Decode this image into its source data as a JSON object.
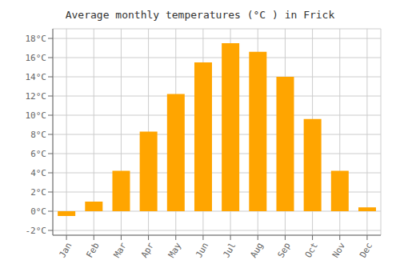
{
  "chart_data": {
    "type": "bar",
    "title": "Average monthly temperatures (°C ) in Frick",
    "categories": [
      "Jan",
      "Feb",
      "Mar",
      "Apr",
      "May",
      "Jun",
      "Jul",
      "Aug",
      "Sep",
      "Oct",
      "Nov",
      "Dec"
    ],
    "values": [
      -0.5,
      1.0,
      4.2,
      8.3,
      12.2,
      15.5,
      17.5,
      16.6,
      14.0,
      9.6,
      4.2,
      0.4
    ],
    "color": "#FFA500",
    "ylim": [
      -2.5,
      19
    ],
    "yticks": [
      {
        "value": -2,
        "label": "-2°C"
      },
      {
        "value": 0,
        "label": "0°C"
      },
      {
        "value": 2,
        "label": "2°C"
      },
      {
        "value": 4,
        "label": "4°C"
      },
      {
        "value": 6,
        "label": "6°C"
      },
      {
        "value": 8,
        "label": "8°C"
      },
      {
        "value": 10,
        "label": "10°C"
      },
      {
        "value": 12,
        "label": "12°C"
      },
      {
        "value": 14,
        "label": "14°C"
      },
      {
        "value": 16,
        "label": "16°C"
      },
      {
        "value": 18,
        "label": "18°C"
      }
    ],
    "grid": true
  }
}
